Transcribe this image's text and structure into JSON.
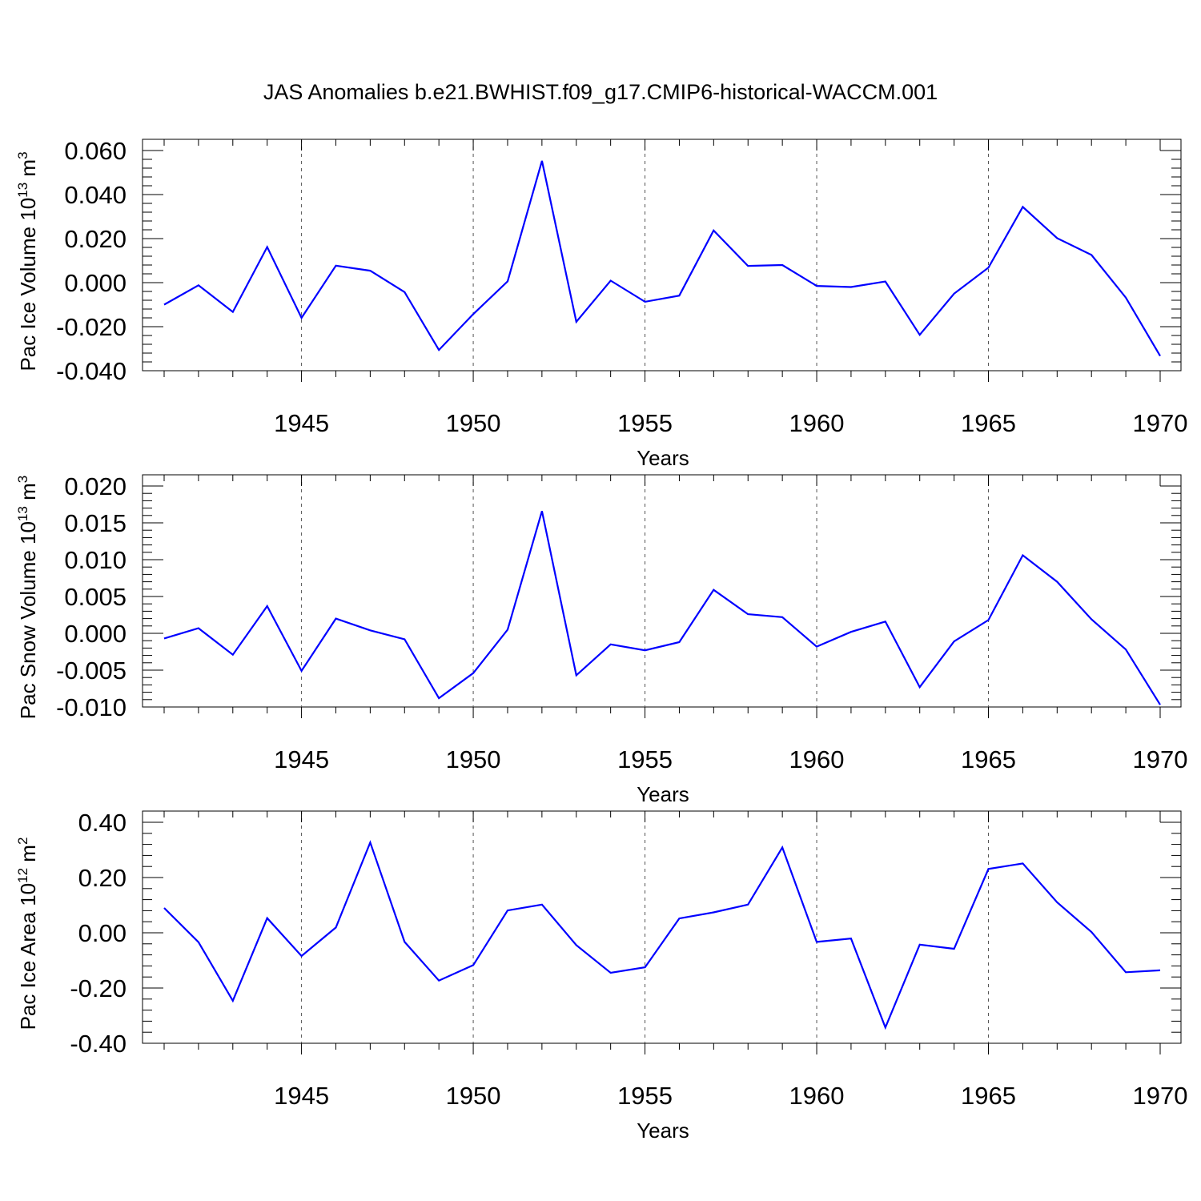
{
  "title": "JAS Anomalies b.e21.BWHIST.f09_g17.CMIP6-historical-WACCM.001",
  "colors": {
    "series": "#0000ff",
    "grid": "#555555",
    "axis": "#000000"
  },
  "chart_data": [
    {
      "type": "line",
      "ylabel_text": "Pac Ice Volume 10",
      "ylabel_exp": "13",
      "ylabel_unit": "m",
      "ylabel_unit_exp": "3",
      "xlabel": "Years",
      "xlim": [
        1941,
        1970
      ],
      "ylim": [
        -0.04,
        0.06
      ],
      "yticks": [
        -0.04,
        -0.02,
        0.0,
        0.02,
        0.04,
        0.06
      ],
      "ytick_labels": [
        "-0.040",
        "-0.020",
        "0.000",
        "0.020",
        "0.040",
        "0.060"
      ],
      "yminor_step": 0.004,
      "xticks": [
        1945,
        1950,
        1955,
        1960,
        1965,
        1970
      ],
      "xtick_labels": [
        "1945",
        "1950",
        "1955",
        "1960",
        "1965",
        "1970"
      ],
      "grid": "vertical dashed at major x ticks",
      "x": [
        1941,
        1942,
        1943,
        1944,
        1945,
        1946,
        1947,
        1948,
        1949,
        1950,
        1951,
        1952,
        1953,
        1954,
        1955,
        1956,
        1957,
        1958,
        1959,
        1960,
        1961,
        1962,
        1963,
        1964,
        1965,
        1966,
        1967,
        1968,
        1969,
        1970
      ],
      "series": [
        {
          "values": [
            -0.01,
            -0.0012,
            -0.0133,
            0.0162,
            -0.016,
            0.0077,
            0.0054,
            -0.0043,
            -0.0306,
            -0.0143,
            0.0006,
            0.0553,
            -0.0178,
            0.0009,
            -0.0087,
            -0.0059,
            0.0237,
            0.0076,
            0.008,
            -0.0015,
            -0.002,
            0.0005,
            -0.0237,
            -0.005,
            0.0068,
            0.0344,
            0.0202,
            0.0126,
            -0.0068,
            -0.0333
          ]
        }
      ]
    },
    {
      "type": "line",
      "ylabel_text": "Pac Snow Volume 10",
      "ylabel_exp": "13",
      "ylabel_unit": "m",
      "ylabel_unit_exp": "3",
      "xlabel": "Years",
      "xlim": [
        1941,
        1970
      ],
      "ylim": [
        -0.01,
        0.02
      ],
      "yticks": [
        -0.01,
        -0.005,
        0.0,
        0.005,
        0.01,
        0.015,
        0.02
      ],
      "ytick_labels": [
        "-0.010",
        "-0.005",
        "0.000",
        "0.005",
        "0.010",
        "0.015",
        "0.020"
      ],
      "yminor_step": 0.001,
      "xticks": [
        1945,
        1950,
        1955,
        1960,
        1965,
        1970
      ],
      "xtick_labels": [
        "1945",
        "1950",
        "1955",
        "1960",
        "1965",
        "1970"
      ],
      "grid": "vertical dashed at major x ticks",
      "x": [
        1941,
        1942,
        1943,
        1944,
        1945,
        1946,
        1947,
        1948,
        1949,
        1950,
        1951,
        1952,
        1953,
        1954,
        1955,
        1956,
        1957,
        1958,
        1959,
        1960,
        1961,
        1962,
        1963,
        1964,
        1965,
        1966,
        1967,
        1968,
        1969,
        1970
      ],
      "series": [
        {
          "values": [
            -0.0007,
            0.0007,
            -0.0029,
            0.0037,
            -0.0051,
            0.002,
            0.0004,
            -0.0008,
            -0.0088,
            -0.0054,
            0.0005,
            0.0166,
            -0.0057,
            -0.0015,
            -0.0023,
            -0.0012,
            0.0059,
            0.0026,
            0.0022,
            -0.0018,
            0.0002,
            0.0016,
            -0.0073,
            -0.0011,
            0.0018,
            0.0106,
            0.007,
            0.0019,
            -0.0022,
            -0.0097
          ]
        }
      ]
    },
    {
      "type": "line",
      "ylabel_text": "Pac Ice Area 10",
      "ylabel_exp": "12",
      "ylabel_unit": "m",
      "ylabel_unit_exp": "2",
      "xlabel": "Years",
      "xlim": [
        1941,
        1970
      ],
      "ylim": [
        -0.4,
        0.4
      ],
      "yticks": [
        -0.4,
        -0.2,
        0.0,
        0.2,
        0.4
      ],
      "ytick_labels": [
        "-0.40",
        "-0.20",
        "0.00",
        "0.20",
        "0.40"
      ],
      "yminor_step": 0.04,
      "xticks": [
        1945,
        1950,
        1955,
        1960,
        1965,
        1970
      ],
      "xtick_labels": [
        "1945",
        "1950",
        "1955",
        "1960",
        "1965",
        "1970"
      ],
      "grid": "vertical dashed at major x ticks",
      "x": [
        1941,
        1942,
        1943,
        1944,
        1945,
        1946,
        1947,
        1948,
        1949,
        1950,
        1951,
        1952,
        1953,
        1954,
        1955,
        1956,
        1957,
        1958,
        1959,
        1960,
        1961,
        1962,
        1963,
        1964,
        1965,
        1966,
        1967,
        1968,
        1969,
        1970
      ],
      "series": [
        {
          "values": [
            0.09,
            -0.034,
            -0.246,
            0.053,
            -0.084,
            0.019,
            0.327,
            -0.033,
            -0.173,
            -0.117,
            0.081,
            0.102,
            -0.045,
            -0.145,
            -0.125,
            0.052,
            0.074,
            0.102,
            0.309,
            -0.033,
            -0.021,
            -0.343,
            -0.043,
            -0.058,
            0.231,
            0.251,
            0.11,
            0.003,
            -0.143,
            -0.136
          ]
        }
      ]
    }
  ]
}
